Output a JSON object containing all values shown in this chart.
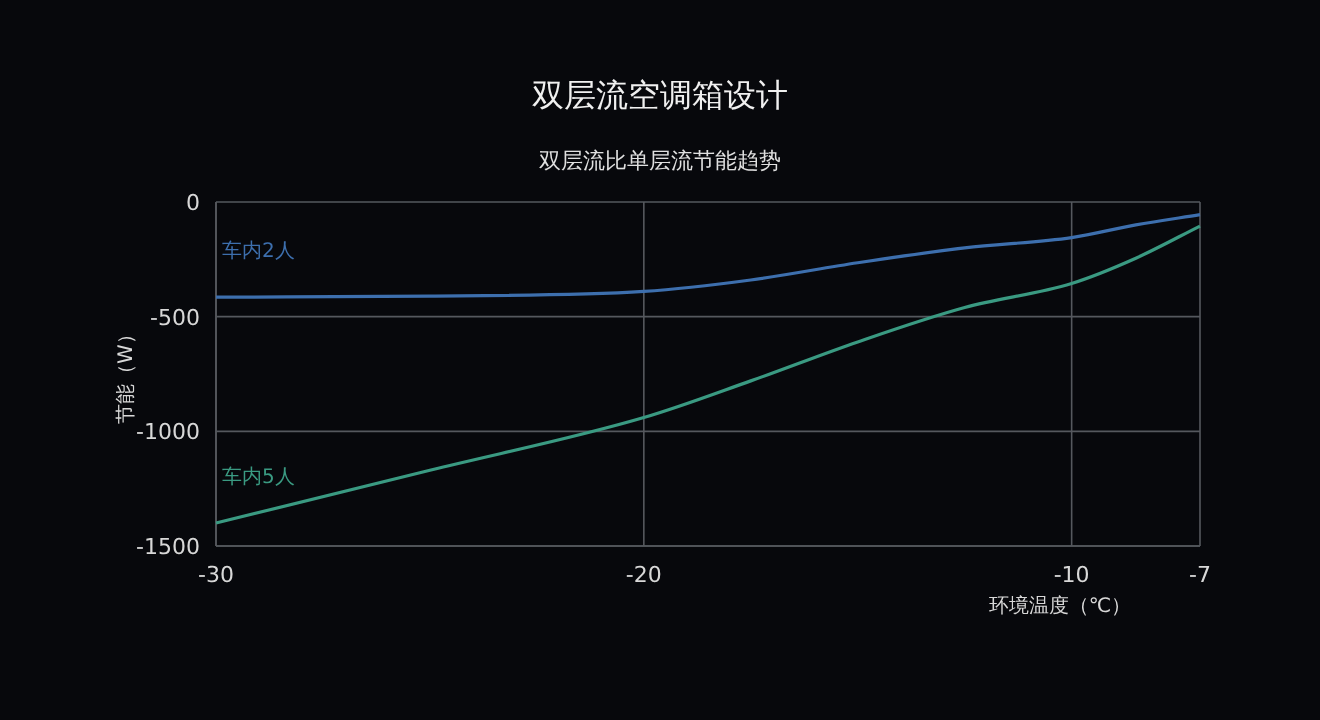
{
  "chart_data": {
    "type": "line",
    "title": "双层流空调箱设计",
    "subtitle": "双层流比单层流节能趋势",
    "xlabel": "环境温度（℃）",
    "ylabel": "节能（W）",
    "x": [
      -30,
      -25,
      -20,
      -17.5,
      -15,
      -12.5,
      -10,
      -8.5,
      -7
    ],
    "series": [
      {
        "name": "车内2人",
        "color": "#3d6fae",
        "values": [
          -415,
          -410,
          -390,
          -340,
          -265,
          -200,
          -155,
          -100,
          -55
        ]
      },
      {
        "name": "车内5人",
        "color": "#3a9a82",
        "values": [
          -1400,
          -1170,
          -940,
          -780,
          -610,
          -460,
          -355,
          -245,
          -105
        ]
      }
    ],
    "xlim": [
      -30,
      -7
    ],
    "ylim": [
      -1500,
      0
    ],
    "xticks": [
      -30,
      -20,
      -10,
      -7
    ],
    "yticks": [
      0,
      -500,
      -1000,
      -1500
    ],
    "grid": true
  }
}
